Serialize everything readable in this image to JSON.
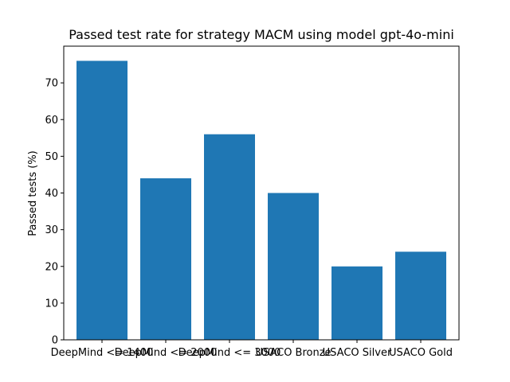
{
  "chart_data": {
    "type": "bar",
    "title": "Passed test rate for strategy MACM using model gpt-4o-mini",
    "xlabel": "",
    "ylabel": "Passed tests (%)",
    "categories": [
      "DeepMind <= 1400",
      "DeepMind <= 2000",
      "DeepMind <= 3000",
      "USACO Bronze",
      "USACO Silver",
      "USACO Gold"
    ],
    "values": [
      76,
      44,
      56,
      40,
      20,
      24
    ],
    "ylim": [
      0,
      80
    ],
    "yticks": [
      0,
      10,
      20,
      30,
      40,
      50,
      60,
      70
    ],
    "bar_color": "#1f77b4",
    "grid": false,
    "legend": "none"
  }
}
